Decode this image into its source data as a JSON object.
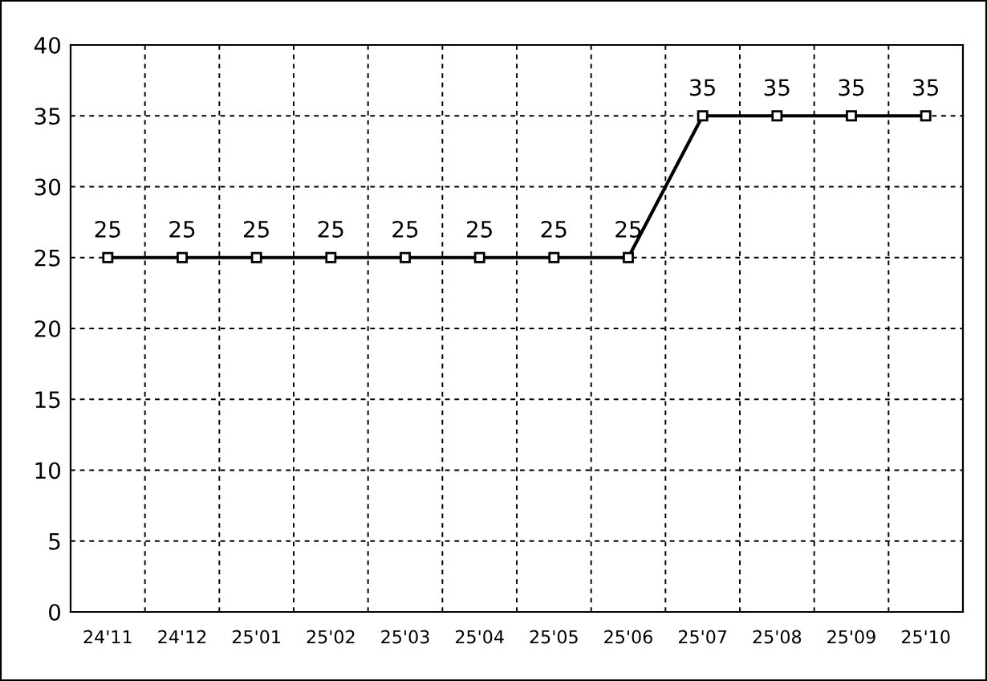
{
  "chart_data": {
    "type": "line",
    "categories": [
      "24'11",
      "24'12",
      "25'01",
      "25'02",
      "25'03",
      "25'04",
      "25'05",
      "25'06",
      "25'07",
      "25'08",
      "25'09",
      "25'10"
    ],
    "values": [
      25,
      25,
      25,
      25,
      25,
      25,
      25,
      25,
      35,
      35,
      35,
      35
    ],
    "color": "#000000",
    "ylim": [
      0,
      40
    ],
    "yticks": [
      0,
      5,
      10,
      15,
      20,
      25,
      30,
      35,
      40
    ],
    "grid": true,
    "marker": "square",
    "line_style": "solid",
    "data_labels": true
  }
}
